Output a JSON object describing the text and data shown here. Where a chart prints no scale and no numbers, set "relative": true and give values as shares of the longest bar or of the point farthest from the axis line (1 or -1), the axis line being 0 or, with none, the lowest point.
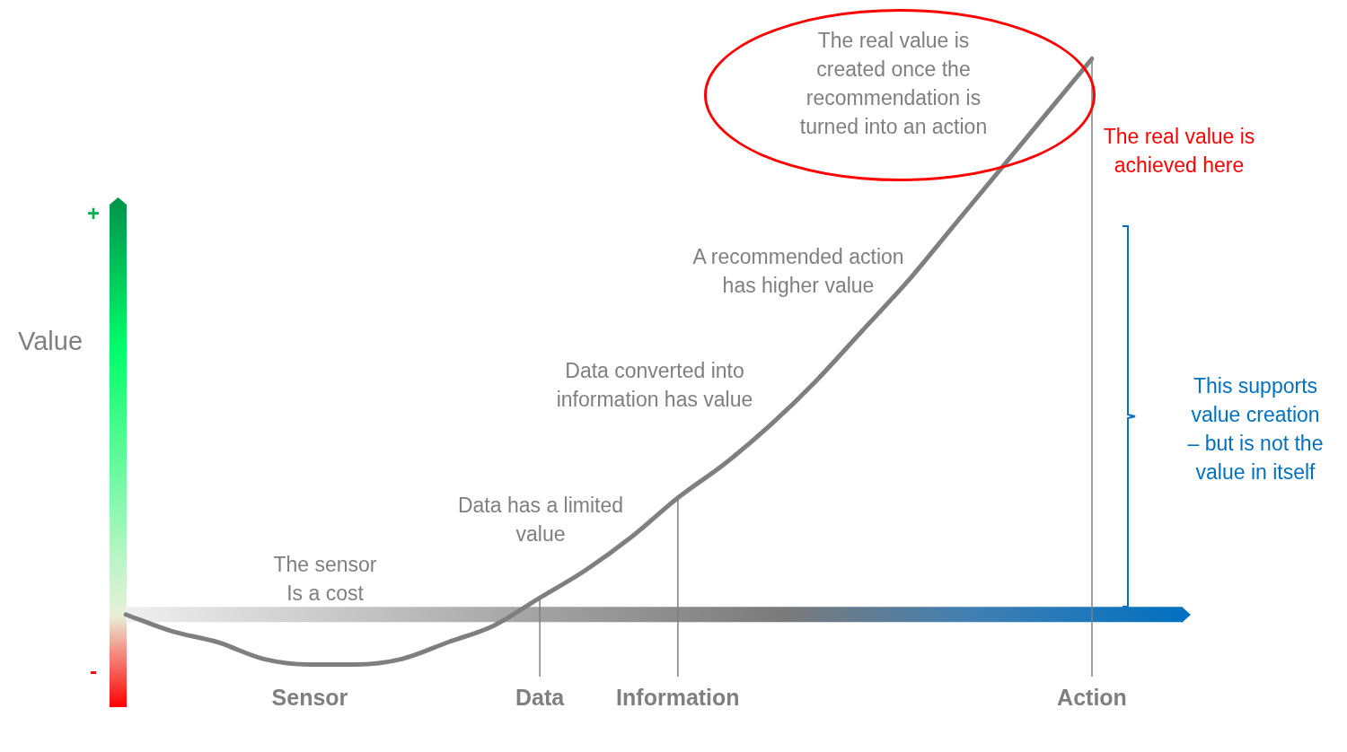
{
  "chart_data": {
    "type": "line",
    "relative": true,
    "ylabel": "Value",
    "categories": [
      null,
      null,
      null,
      null,
      "Sensor",
      null,
      null,
      null,
      null,
      "Data",
      null,
      null,
      "Information",
      null,
      null,
      null,
      null,
      null,
      null,
      null,
      null,
      "Action"
    ],
    "series": [
      {
        "color": "#7f7f7f",
        "values": [
          0,
          -0.03,
          -0.05,
          -0.08,
          -0.09,
          -0.09,
          -0.08,
          -0.05,
          -0.02,
          0.03,
          0.08,
          0.14,
          0.21,
          0.27,
          0.34,
          0.42,
          0.51,
          0.6,
          0.7,
          0.8,
          0.9,
          1
        ]
      }
    ],
    "ref_lines": [
      {
        "axis": "x",
        "value": "Data",
        "color": "#7f7f7f"
      },
      {
        "axis": "x",
        "value": "Information",
        "color": "#7f7f7f"
      },
      {
        "axis": "x",
        "value": "Action",
        "color": "#7f7f7f"
      }
    ],
    "annotations": [
      "The real value is\ncreated once the\nrecommendation is\nturned into an action",
      "The real value is\nachieved here",
      "A recommended action\nhas higher value",
      "Data converted into\ninformation has value",
      "Data has a limited\nvalue",
      "The sensor\nIs a cost",
      "This supports\nvalue creation\n– but is not the\nvalue in itself",
      "+",
      "-"
    ],
    "legend": false,
    "grid": false,
    "marker": "none",
    "line_style": "solid"
  }
}
